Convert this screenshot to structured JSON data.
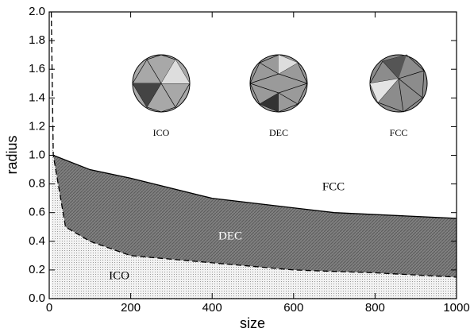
{
  "chart_data": {
    "type": "area",
    "xlabel": "size",
    "ylabel": "radius",
    "xlim": [
      0,
      1000
    ],
    "xticks": [
      0,
      200,
      400,
      600,
      800,
      1000
    ],
    "ylim": [
      0,
      2.0
    ],
    "yticks": [
      {
        "value": 0,
        "label": "0.0"
      },
      0.2,
      0.4,
      0.6,
      0.8,
      {
        "value": 1,
        "label": "1.0"
      },
      1.2,
      1.4,
      1.6,
      1.8,
      {
        "value": 2,
        "label": "2.0"
      }
    ],
    "series": [
      {
        "color": "#7a7a7a",
        "style": "solid",
        "x": [
          10,
          100,
          200,
          400,
          700,
          1000
        ],
        "values": [
          1.0,
          0.9,
          0.84,
          0.7,
          0.6,
          0.56
        ]
      },
      {
        "color": "#ececec",
        "style": "dashed",
        "x": [
          5,
          10,
          40,
          100,
          200,
          400,
          600,
          800,
          1000
        ],
        "values": [
          2.0,
          1.0,
          0.5,
          0.4,
          0.3,
          0.25,
          0.2,
          0.18,
          0.15
        ]
      }
    ],
    "region_labels": [
      "FCC",
      "DEC",
      "ICO"
    ],
    "image_labels": [
      "ICO",
      "DEC",
      "FCC"
    ]
  }
}
